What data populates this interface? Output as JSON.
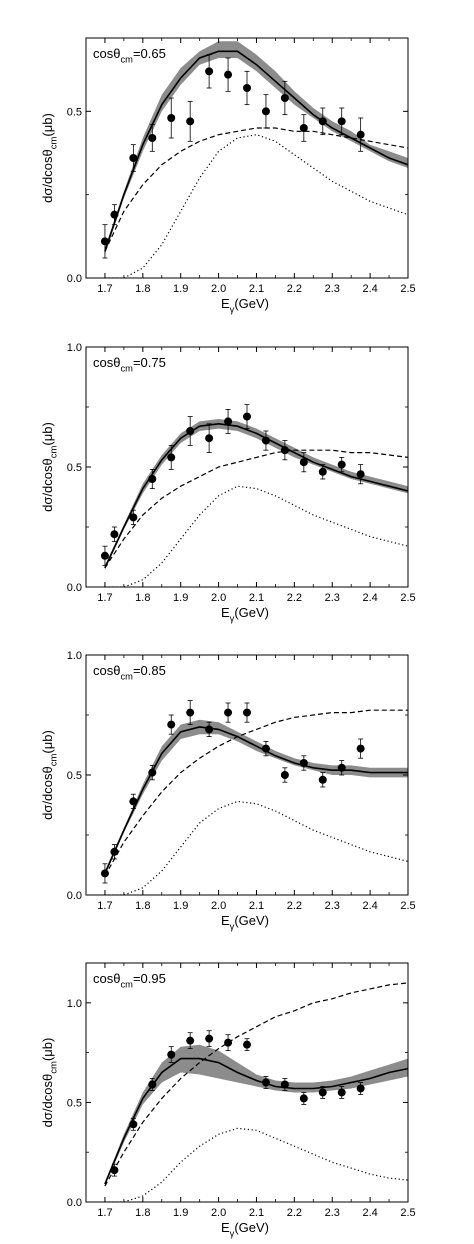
{
  "chart_data": [
    {
      "type": "line",
      "label": "cosθ_cm=0.65",
      "xlabel": "E_γ(GeV)",
      "ylabel": "dσ/dcosθ_cm(μb)",
      "xlim": [
        1.65,
        2.5
      ],
      "ylim": [
        0.0,
        0.72
      ],
      "xticks": [
        1.7,
        1.8,
        1.9,
        2.0,
        2.1,
        2.2,
        2.3,
        2.4,
        2.5
      ],
      "yticks": [
        0.0,
        0.5
      ],
      "ytick_labels": [
        "0.0",
        "0.5"
      ],
      "series": [
        {
          "style": "solid",
          "x": [
            1.7,
            1.75,
            1.8,
            1.85,
            1.9,
            1.95,
            2.0,
            2.05,
            2.1,
            2.15,
            2.2,
            2.25,
            2.3,
            2.35,
            2.4,
            2.45,
            2.5
          ],
          "y": [
            0.08,
            0.25,
            0.4,
            0.52,
            0.6,
            0.66,
            0.68,
            0.68,
            0.64,
            0.59,
            0.54,
            0.49,
            0.45,
            0.42,
            0.39,
            0.36,
            0.34
          ]
        },
        {
          "style": "band",
          "x": [
            1.7,
            1.75,
            1.8,
            1.85,
            1.9,
            1.95,
            2.0,
            2.05,
            2.1,
            2.15,
            2.2,
            2.25,
            2.3,
            2.35,
            2.4,
            2.45,
            2.5
          ],
          "lower": [
            0.07,
            0.24,
            0.38,
            0.5,
            0.58,
            0.64,
            0.66,
            0.66,
            0.62,
            0.57,
            0.52,
            0.48,
            0.44,
            0.41,
            0.38,
            0.35,
            0.33
          ],
          "upper": [
            0.09,
            0.26,
            0.42,
            0.55,
            0.63,
            0.68,
            0.71,
            0.71,
            0.67,
            0.62,
            0.56,
            0.51,
            0.47,
            0.44,
            0.4,
            0.38,
            0.36
          ]
        },
        {
          "style": "dashed",
          "x": [
            1.7,
            1.75,
            1.8,
            1.85,
            1.9,
            1.95,
            2.0,
            2.05,
            2.1,
            2.15,
            2.2,
            2.25,
            2.3,
            2.35,
            2.4,
            2.45,
            2.5
          ],
          "y": [
            0.08,
            0.2,
            0.28,
            0.34,
            0.38,
            0.41,
            0.43,
            0.44,
            0.45,
            0.45,
            0.44,
            0.44,
            0.43,
            0.42,
            0.41,
            0.4,
            0.39
          ]
        },
        {
          "style": "dotted",
          "x": [
            1.7,
            1.75,
            1.8,
            1.85,
            1.9,
            1.95,
            2.0,
            2.05,
            2.1,
            2.15,
            2.2,
            2.25,
            2.3,
            2.35,
            2.4,
            2.45,
            2.5
          ],
          "y": [
            0.0,
            0.0,
            0.03,
            0.1,
            0.2,
            0.3,
            0.38,
            0.42,
            0.43,
            0.41,
            0.37,
            0.33,
            0.29,
            0.26,
            0.23,
            0.21,
            0.19
          ]
        },
        {
          "style": "points",
          "x": [
            1.7,
            1.725,
            1.775,
            1.825,
            1.875,
            1.925,
            1.975,
            2.025,
            2.075,
            2.125,
            2.175,
            2.225,
            2.275,
            2.325,
            2.375
          ],
          "y": [
            0.11,
            0.19,
            0.36,
            0.42,
            0.48,
            0.47,
            0.62,
            0.61,
            0.57,
            0.5,
            0.54,
            0.45,
            0.47,
            0.47,
            0.43
          ],
          "err": [
            0.05,
            0.03,
            0.04,
            0.04,
            0.06,
            0.06,
            0.05,
            0.05,
            0.05,
            0.05,
            0.05,
            0.04,
            0.04,
            0.04,
            0.05
          ]
        }
      ]
    },
    {
      "type": "line",
      "label": "cosθ_cm=0.75",
      "xlabel": "E_γ(GeV)",
      "ylabel": "dσ/dcosθ_cm(μb)",
      "xlim": [
        1.65,
        2.5
      ],
      "ylim": [
        0.0,
        1.0
      ],
      "xticks": [
        1.7,
        1.8,
        1.9,
        2.0,
        2.1,
        2.2,
        2.3,
        2.4,
        2.5
      ],
      "yticks": [
        0.0,
        0.5,
        1.0
      ],
      "ytick_labels": [
        "0.0",
        "0.5",
        "1.0"
      ],
      "series": [
        {
          "style": "solid",
          "x": [
            1.7,
            1.75,
            1.8,
            1.85,
            1.9,
            1.95,
            2.0,
            2.05,
            2.1,
            2.15,
            2.2,
            2.25,
            2.3,
            2.35,
            2.4,
            2.45,
            2.5
          ],
          "y": [
            0.08,
            0.25,
            0.41,
            0.53,
            0.62,
            0.67,
            0.68,
            0.67,
            0.64,
            0.6,
            0.56,
            0.52,
            0.49,
            0.46,
            0.44,
            0.42,
            0.4
          ]
        },
        {
          "style": "band",
          "x": [
            1.7,
            1.75,
            1.8,
            1.85,
            1.9,
            1.95,
            2.0,
            2.05,
            2.1,
            2.15,
            2.2,
            2.25,
            2.3,
            2.35,
            2.4,
            2.45,
            2.5
          ],
          "lower": [
            0.07,
            0.24,
            0.39,
            0.51,
            0.6,
            0.65,
            0.66,
            0.65,
            0.62,
            0.58,
            0.54,
            0.51,
            0.48,
            0.45,
            0.43,
            0.41,
            0.39
          ],
          "upper": [
            0.09,
            0.26,
            0.43,
            0.55,
            0.64,
            0.69,
            0.7,
            0.69,
            0.66,
            0.62,
            0.58,
            0.54,
            0.51,
            0.48,
            0.46,
            0.44,
            0.42
          ]
        },
        {
          "style": "dashed",
          "x": [
            1.7,
            1.75,
            1.8,
            1.85,
            1.9,
            1.95,
            2.0,
            2.05,
            2.1,
            2.15,
            2.2,
            2.25,
            2.3,
            2.35,
            2.4,
            2.45,
            2.5
          ],
          "y": [
            0.08,
            0.2,
            0.3,
            0.37,
            0.42,
            0.46,
            0.5,
            0.52,
            0.54,
            0.56,
            0.57,
            0.57,
            0.57,
            0.56,
            0.56,
            0.55,
            0.54
          ]
        },
        {
          "style": "dotted",
          "x": [
            1.7,
            1.75,
            1.8,
            1.85,
            1.9,
            1.95,
            2.0,
            2.05,
            2.1,
            2.15,
            2.2,
            2.25,
            2.3,
            2.35,
            2.4,
            2.45,
            2.5
          ],
          "y": [
            0.0,
            0.0,
            0.03,
            0.1,
            0.2,
            0.3,
            0.38,
            0.42,
            0.41,
            0.38,
            0.34,
            0.3,
            0.27,
            0.24,
            0.21,
            0.19,
            0.17
          ]
        },
        {
          "style": "points",
          "x": [
            1.7,
            1.725,
            1.775,
            1.825,
            1.875,
            1.925,
            1.975,
            2.025,
            2.075,
            2.125,
            2.175,
            2.225,
            2.275,
            2.325,
            2.375
          ],
          "y": [
            0.13,
            0.22,
            0.29,
            0.45,
            0.54,
            0.65,
            0.62,
            0.69,
            0.71,
            0.61,
            0.57,
            0.52,
            0.48,
            0.51,
            0.47
          ],
          "err": [
            0.04,
            0.03,
            0.03,
            0.04,
            0.05,
            0.06,
            0.06,
            0.05,
            0.05,
            0.04,
            0.04,
            0.04,
            0.03,
            0.03,
            0.04
          ]
        }
      ]
    },
    {
      "type": "line",
      "label": "cosθ_cm=0.85",
      "xlabel": "E_γ(GeV)",
      "ylabel": "dσ/dcosθ_cm(μb)",
      "xlim": [
        1.65,
        2.5
      ],
      "ylim": [
        0.0,
        1.0
      ],
      "xticks": [
        1.7,
        1.8,
        1.9,
        2.0,
        2.1,
        2.2,
        2.3,
        2.4,
        2.5
      ],
      "yticks": [
        0.0,
        0.5,
        1.0
      ],
      "ytick_labels": [
        "0.0",
        "0.5",
        "1.0"
      ],
      "series": [
        {
          "style": "solid",
          "x": [
            1.7,
            1.75,
            1.8,
            1.85,
            1.9,
            1.95,
            2.0,
            2.05,
            2.1,
            2.15,
            2.2,
            2.25,
            2.3,
            2.35,
            2.4,
            2.45,
            2.5
          ],
          "y": [
            0.09,
            0.27,
            0.44,
            0.59,
            0.68,
            0.7,
            0.69,
            0.66,
            0.62,
            0.58,
            0.55,
            0.53,
            0.52,
            0.52,
            0.51,
            0.51,
            0.51
          ]
        },
        {
          "style": "band",
          "x": [
            1.7,
            1.75,
            1.8,
            1.85,
            1.9,
            1.95,
            2.0,
            2.05,
            2.1,
            2.15,
            2.2,
            2.25,
            2.3,
            2.35,
            2.4,
            2.45,
            2.5
          ],
          "lower": [
            0.08,
            0.26,
            0.42,
            0.56,
            0.65,
            0.67,
            0.67,
            0.64,
            0.6,
            0.57,
            0.54,
            0.52,
            0.5,
            0.5,
            0.49,
            0.49,
            0.49
          ],
          "upper": [
            0.1,
            0.28,
            0.46,
            0.62,
            0.71,
            0.73,
            0.72,
            0.68,
            0.64,
            0.6,
            0.57,
            0.55,
            0.54,
            0.54,
            0.53,
            0.53,
            0.53
          ]
        },
        {
          "style": "dashed",
          "x": [
            1.7,
            1.75,
            1.8,
            1.85,
            1.9,
            1.95,
            2.0,
            2.05,
            2.1,
            2.15,
            2.2,
            2.25,
            2.3,
            2.35,
            2.4,
            2.45,
            2.5
          ],
          "y": [
            0.08,
            0.22,
            0.33,
            0.43,
            0.51,
            0.57,
            0.62,
            0.66,
            0.69,
            0.72,
            0.74,
            0.75,
            0.76,
            0.76,
            0.77,
            0.77,
            0.77
          ]
        },
        {
          "style": "dotted",
          "x": [
            1.7,
            1.75,
            1.8,
            1.85,
            1.9,
            1.95,
            2.0,
            2.05,
            2.1,
            2.15,
            2.2,
            2.25,
            2.3,
            2.35,
            2.4,
            2.45,
            2.5
          ],
          "y": [
            0.0,
            0.0,
            0.03,
            0.1,
            0.2,
            0.3,
            0.36,
            0.39,
            0.38,
            0.35,
            0.31,
            0.27,
            0.24,
            0.21,
            0.18,
            0.16,
            0.14
          ]
        },
        {
          "style": "points",
          "x": [
            1.7,
            1.725,
            1.775,
            1.825,
            1.875,
            1.925,
            1.975,
            2.025,
            2.075,
            2.125,
            2.175,
            2.225,
            2.275,
            2.325,
            2.375
          ],
          "y": [
            0.09,
            0.18,
            0.39,
            0.51,
            0.71,
            0.76,
            0.69,
            0.76,
            0.76,
            0.61,
            0.5,
            0.55,
            0.48,
            0.53,
            0.61
          ],
          "err": [
            0.04,
            0.03,
            0.03,
            0.03,
            0.04,
            0.05,
            0.03,
            0.04,
            0.04,
            0.03,
            0.03,
            0.03,
            0.03,
            0.03,
            0.04
          ]
        }
      ]
    },
    {
      "type": "line",
      "label": "cosθ_cm=0.95",
      "xlabel": "E_γ(GeV)",
      "ylabel": "dσ/dcosθ_cm(μb)",
      "xlim": [
        1.65,
        2.5
      ],
      "ylim": [
        0.0,
        1.2
      ],
      "xticks": [
        1.7,
        1.8,
        1.9,
        2.0,
        2.1,
        2.2,
        2.3,
        2.4,
        2.5
      ],
      "yticks": [
        0.0,
        0.5,
        1.0
      ],
      "ytick_labels": [
        "0.0",
        "0.5",
        "1.0"
      ],
      "series": [
        {
          "style": "solid",
          "x": [
            1.7,
            1.75,
            1.8,
            1.85,
            1.9,
            1.95,
            2.0,
            2.05,
            2.1,
            2.15,
            2.2,
            2.25,
            2.3,
            2.35,
            2.4,
            2.45,
            2.5
          ],
          "y": [
            0.09,
            0.32,
            0.52,
            0.65,
            0.72,
            0.72,
            0.7,
            0.65,
            0.61,
            0.58,
            0.57,
            0.57,
            0.58,
            0.6,
            0.62,
            0.65,
            0.67
          ]
        },
        {
          "style": "band",
          "x": [
            1.7,
            1.75,
            1.8,
            1.85,
            1.9,
            1.95,
            2.0,
            2.05,
            2.1,
            2.15,
            2.2,
            2.25,
            2.3,
            2.35,
            2.4,
            2.45,
            2.5
          ],
          "lower": [
            0.08,
            0.3,
            0.49,
            0.6,
            0.65,
            0.64,
            0.62,
            0.6,
            0.58,
            0.56,
            0.55,
            0.55,
            0.56,
            0.57,
            0.59,
            0.61,
            0.63
          ],
          "upper": [
            0.1,
            0.34,
            0.55,
            0.7,
            0.78,
            0.79,
            0.76,
            0.7,
            0.64,
            0.61,
            0.6,
            0.6,
            0.61,
            0.63,
            0.66,
            0.69,
            0.72
          ]
        },
        {
          "style": "dashed",
          "x": [
            1.7,
            1.75,
            1.8,
            1.85,
            1.9,
            1.95,
            2.0,
            2.05,
            2.1,
            2.15,
            2.2,
            2.25,
            2.3,
            2.35,
            2.4,
            2.45,
            2.5
          ],
          "y": [
            0.08,
            0.25,
            0.4,
            0.52,
            0.62,
            0.7,
            0.77,
            0.83,
            0.88,
            0.93,
            0.96,
            1.0,
            1.02,
            1.05,
            1.07,
            1.09,
            1.1
          ]
        },
        {
          "style": "dotted",
          "x": [
            1.7,
            1.75,
            1.8,
            1.85,
            1.9,
            1.95,
            2.0,
            2.05,
            2.1,
            2.15,
            2.2,
            2.25,
            2.3,
            2.35,
            2.4,
            2.45,
            2.5
          ],
          "y": [
            0.0,
            0.0,
            0.03,
            0.1,
            0.2,
            0.28,
            0.34,
            0.37,
            0.36,
            0.32,
            0.28,
            0.24,
            0.2,
            0.17,
            0.14,
            0.12,
            0.11
          ]
        },
        {
          "style": "points",
          "x": [
            1.725,
            1.775,
            1.825,
            1.875,
            1.925,
            1.975,
            2.025,
            2.075,
            2.125,
            2.175,
            2.225,
            2.275,
            2.325,
            2.375
          ],
          "y": [
            0.16,
            0.39,
            0.59,
            0.74,
            0.81,
            0.82,
            0.8,
            0.79,
            0.6,
            0.59,
            0.52,
            0.55,
            0.55,
            0.57
          ],
          "err": [
            0.03,
            0.03,
            0.03,
            0.04,
            0.04,
            0.04,
            0.04,
            0.03,
            0.03,
            0.03,
            0.03,
            0.03,
            0.03,
            0.03
          ]
        }
      ]
    }
  ]
}
